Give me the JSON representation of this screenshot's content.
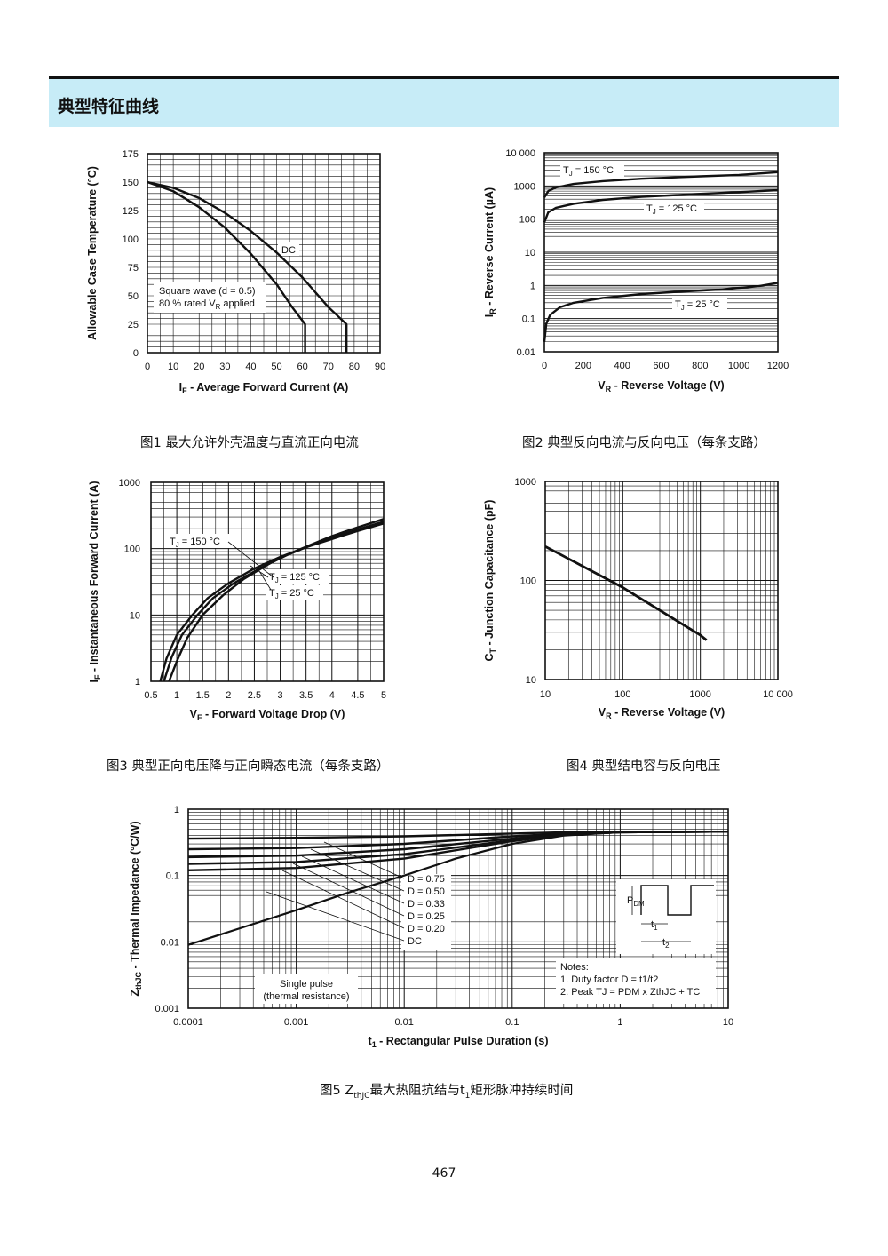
{
  "header": {
    "title": "典型特征曲线"
  },
  "page_number": "467",
  "charts": {
    "fig1": {
      "caption": "图1 最大允许外壳温度与直流正向电流",
      "chart_data": {
        "type": "line",
        "xlabel": "IF - Average Forward Current (A)",
        "xlabel_main": "I",
        "xlabel_sub": "F",
        "xlabel_rest": " - Average Forward Current (A)",
        "ylabel": "Allowable Case Temperature (°C)",
        "xlim": [
          0,
          90
        ],
        "ylim": [
          0,
          175
        ],
        "xticks": [
          0,
          10,
          20,
          30,
          40,
          50,
          60,
          70,
          80,
          90
        ],
        "yticks": [
          0,
          25,
          50,
          75,
          100,
          125,
          150,
          175
        ],
        "series": [
          {
            "name": "DC",
            "x": [
              0,
              10,
              20,
              30,
              40,
              50,
              60,
              70,
              77,
              77
            ],
            "y": [
              150,
              145,
              136,
              123,
              107,
              88,
              66,
              40,
              25,
              0
            ]
          },
          {
            "name": "",
            "x": [
              0,
              10,
              20,
              30,
              40,
              50,
              56,
              61,
              61
            ],
            "y": [
              150,
              142,
              128,
              110,
              87,
              60,
              40,
              25,
              0
            ]
          }
        ],
        "annotations": [
          {
            "text": "DC"
          },
          {
            "text": "Square wave (d = 0.5)"
          },
          {
            "text": "80 % rated VR applied",
            "main": "80 % rated V",
            "sub": "R",
            "rest": " applied"
          }
        ]
      }
    },
    "fig2": {
      "caption": "图2 典型反向电流与反向电压（每条支路）",
      "chart_data": {
        "type": "line",
        "xlabel": "VR - Reverse Voltage (V)",
        "xlabel_main": "V",
        "xlabel_sub": "R",
        "xlabel_rest": " - Reverse Voltage (V)",
        "ylabel": "IR - Reverse Current (µA)",
        "ylabel_main": "I",
        "ylabel_sub": "R",
        "ylabel_rest": " - Reverse Current (µA)",
        "yscale": "log",
        "xlim": [
          0,
          1200
        ],
        "ylim": [
          0.01,
          10000
        ],
        "xticks": [
          0,
          200,
          400,
          600,
          800,
          1000,
          1200
        ],
        "yticks": [
          0.01,
          0.1,
          1,
          10,
          100,
          1000,
          10000
        ],
        "ytick_labels": [
          "0.01",
          "0.1",
          "1",
          "10",
          "100",
          "1000",
          "10 000"
        ],
        "series": [
          {
            "name": "TJ = 150 °C",
            "x": [
              0,
              20,
              60,
              150,
              300,
              500,
              800,
              1000,
              1200
            ],
            "y": [
              450,
              700,
              900,
              1150,
              1400,
              1650,
              1950,
              2150,
              2600
            ]
          },
          {
            "name": "TJ = 125 °C",
            "x": [
              0,
              20,
              60,
              150,
              300,
              500,
              800,
              1000,
              1200
            ],
            "y": [
              80,
              160,
              220,
              290,
              380,
              470,
              580,
              650,
              750
            ]
          },
          {
            "name": "TJ = 25 °C",
            "x": [
              0,
              10,
              30,
              80,
              150,
              300,
              500,
              700,
              900,
              1100,
              1200
            ],
            "y": [
              0.02,
              0.07,
              0.13,
              0.22,
              0.3,
              0.42,
              0.55,
              0.65,
              0.75,
              0.95,
              1.2
            ]
          }
        ],
        "annotations": [
          {
            "text": "TJ = 150 °C",
            "main": "T",
            "sub": "J",
            "rest": " = 150 °C"
          },
          {
            "text": "TJ = 125 °C",
            "main": "T",
            "sub": "J",
            "rest": " = 125 °C"
          },
          {
            "text": "TJ = 25 °C",
            "main": "T",
            "sub": "J",
            "rest": " = 25 °C"
          }
        ]
      }
    },
    "fig3": {
      "caption": "图3 典型正向电压降与正向瞬态电流（每条支路）",
      "chart_data": {
        "type": "line",
        "xlabel": "VF - Forward Voltage Drop (V)",
        "xlabel_main": "V",
        "xlabel_sub": "F",
        "xlabel_rest": " - Forward Voltage Drop (V)",
        "ylabel": "IF - Instantaneous Forward Current (A)",
        "ylabel_main": "I",
        "ylabel_sub": "F",
        "ylabel_rest": " - Instantaneous Forward Current (A)",
        "yscale": "log",
        "xlim": [
          0.5,
          5
        ],
        "ylim": [
          1,
          1000
        ],
        "xticks": [
          0.5,
          1,
          1.5,
          2,
          2.5,
          3,
          3.5,
          4,
          4.5,
          5
        ],
        "xtick_labels": [
          "0.5",
          "1",
          "1.5",
          "2",
          "2.5",
          "3",
          "3.5",
          "4",
          "4.5",
          "5"
        ],
        "yticks": [
          1,
          10,
          100,
          1000
        ],
        "series": [
          {
            "name": "TJ = 150 °C",
            "x": [
              0.68,
              0.8,
              1.0,
              1.3,
              1.6,
              2.0,
              2.5,
              3.0,
              3.5,
              4.0,
              4.5,
              5.0
            ],
            "y": [
              1,
              2.2,
              5,
              10,
              18,
              30,
              50,
              75,
              105,
              140,
              185,
              240
            ]
          },
          {
            "name": "TJ = 125 °C",
            "x": [
              0.75,
              0.9,
              1.1,
              1.4,
              1.7,
              2.1,
              2.6,
              3.1,
              3.5,
              4.0,
              4.5,
              5.0
            ],
            "y": [
              1,
              2.3,
              5,
              10,
              18,
              30,
              50,
              78,
              105,
              145,
              195,
              255
            ]
          },
          {
            "name": "TJ = 25 °C",
            "x": [
              0.85,
              1.0,
              1.2,
              1.5,
              1.9,
              2.3,
              2.8,
              3.2,
              3.6,
              4.0,
              4.5,
              5.0
            ],
            "y": [
              1,
              2,
              4.5,
              10,
              20,
              35,
              60,
              85,
              115,
              155,
              210,
              280
            ]
          }
        ],
        "annotations": [
          {
            "text": "TJ = 150 °C",
            "main": "T",
            "sub": "J",
            "rest": " = 150 °C"
          },
          {
            "text": "TJ = 125 °C",
            "main": "T",
            "sub": "J",
            "rest": " = 125 °C"
          },
          {
            "text": "TJ = 25 °C",
            "main": "T",
            "sub": "J",
            "rest": " = 25 °C"
          }
        ]
      }
    },
    "fig4": {
      "caption": "图4 典型结电容与反向电压",
      "chart_data": {
        "type": "line",
        "xlabel": "VR - Reverse Voltage (V)",
        "xlabel_main": "V",
        "xlabel_sub": "R",
        "xlabel_rest": " - Reverse Voltage (V)",
        "ylabel": "CT - Junction Capacitance (pF)",
        "ylabel_main": "C",
        "ylabel_sub": "T",
        "ylabel_rest": " - Junction Capacitance (pF)",
        "xscale": "log",
        "yscale": "log",
        "xlim": [
          10,
          10000
        ],
        "ylim": [
          10,
          1000
        ],
        "xticks": [
          10,
          100,
          1000,
          10000
        ],
        "xtick_labels": [
          "10",
          "100",
          "1000",
          "10 000"
        ],
        "yticks": [
          10,
          100,
          1000
        ],
        "series": [
          {
            "name": "",
            "x": [
              10,
              30,
              100,
              300,
              1000,
              1200
            ],
            "y": [
              220,
              140,
              85,
              50,
              28,
              25
            ]
          }
        ]
      }
    },
    "fig5": {
      "caption": "图5 ZthJC最大热阻抗结与t1矩形脉冲持续时间",
      "caption_parts": {
        "a": "图5 Z",
        "b": "thJC",
        "c": "最大热阻抗结与t",
        "d": "1",
        "e": "矩形脉冲持续时间"
      },
      "chart_data": {
        "type": "line",
        "xlabel": "t1 - Rectangular Pulse Duration (s)",
        "xlabel_main": "t",
        "xlabel_sub": "1",
        "xlabel_rest": " - Rectangular Pulse Duration (s)",
        "ylabel": "ZthJC - Thermal Impedance (°C/W)",
        "ylabel_main": "Z",
        "ylabel_sub": "thJC",
        "ylabel_rest": " - Thermal Impedance (°C/W)",
        "xscale": "log",
        "yscale": "log",
        "xlim": [
          0.0001,
          10
        ],
        "ylim": [
          0.001,
          1
        ],
        "xticks": [
          0.0001,
          0.001,
          0.01,
          0.1,
          1,
          10
        ],
        "xtick_labels": [
          "0.0001",
          "0.001",
          "0.01",
          "0.1",
          "1",
          "10"
        ],
        "yticks": [
          0.001,
          0.01,
          0.1,
          1
        ],
        "ytick_labels": [
          "0.001",
          "0.01",
          "0.1",
          "1"
        ],
        "series": [
          {
            "name": "D = 0.75",
            "x": [
              0.0001,
              0.001,
              0.01,
              0.1,
              0.3,
              1,
              10
            ],
            "y": [
              0.36,
              0.37,
              0.39,
              0.43,
              0.45,
              0.46,
              0.46
            ]
          },
          {
            "name": "D = 0.50",
            "x": [
              0.0001,
              0.001,
              0.01,
              0.1,
              0.3,
              1,
              10
            ],
            "y": [
              0.25,
              0.26,
              0.3,
              0.39,
              0.43,
              0.45,
              0.46
            ]
          },
          {
            "name": "D = 0.33",
            "x": [
              0.0001,
              0.001,
              0.01,
              0.1,
              0.3,
              1,
              10
            ],
            "y": [
              0.19,
              0.2,
              0.25,
              0.36,
              0.42,
              0.45,
              0.46
            ]
          },
          {
            "name": "D = 0.25",
            "x": [
              0.0001,
              0.001,
              0.01,
              0.1,
              0.3,
              1,
              10
            ],
            "y": [
              0.15,
              0.16,
              0.21,
              0.34,
              0.41,
              0.45,
              0.46
            ]
          },
          {
            "name": "D = 0.20",
            "x": [
              0.0001,
              0.001,
              0.01,
              0.1,
              0.3,
              1,
              10
            ],
            "y": [
              0.12,
              0.13,
              0.18,
              0.33,
              0.41,
              0.45,
              0.46
            ]
          },
          {
            "name": "Single pulse (thermal resistance)",
            "x": [
              0.0001,
              0.001,
              0.003,
              0.01,
              0.03,
              0.1,
              0.3,
              1,
              10
            ],
            "y": [
              0.009,
              0.03,
              0.055,
              0.1,
              0.18,
              0.3,
              0.4,
              0.45,
              0.46
            ]
          }
        ],
        "legend_labels": [
          "D = 0.75",
          "D = 0.50",
          "D = 0.33",
          "D = 0.25",
          "D = 0.20",
          "DC"
        ],
        "annotations": [
          {
            "text": "Single pulse"
          },
          {
            "text": "(thermal resistance)"
          },
          {
            "text": "Notes:"
          },
          {
            "text": "1. Duty factor D = t1/t2"
          },
          {
            "text": "2. Peak TJ = PDM x ZthJC + TC"
          }
        ],
        "inset_labels": {
          "pdm": "P",
          "pdm_sub": "DM",
          "t1": "t",
          "t1_sub": "1",
          "t2": "t",
          "t2_sub": "2"
        }
      }
    }
  }
}
